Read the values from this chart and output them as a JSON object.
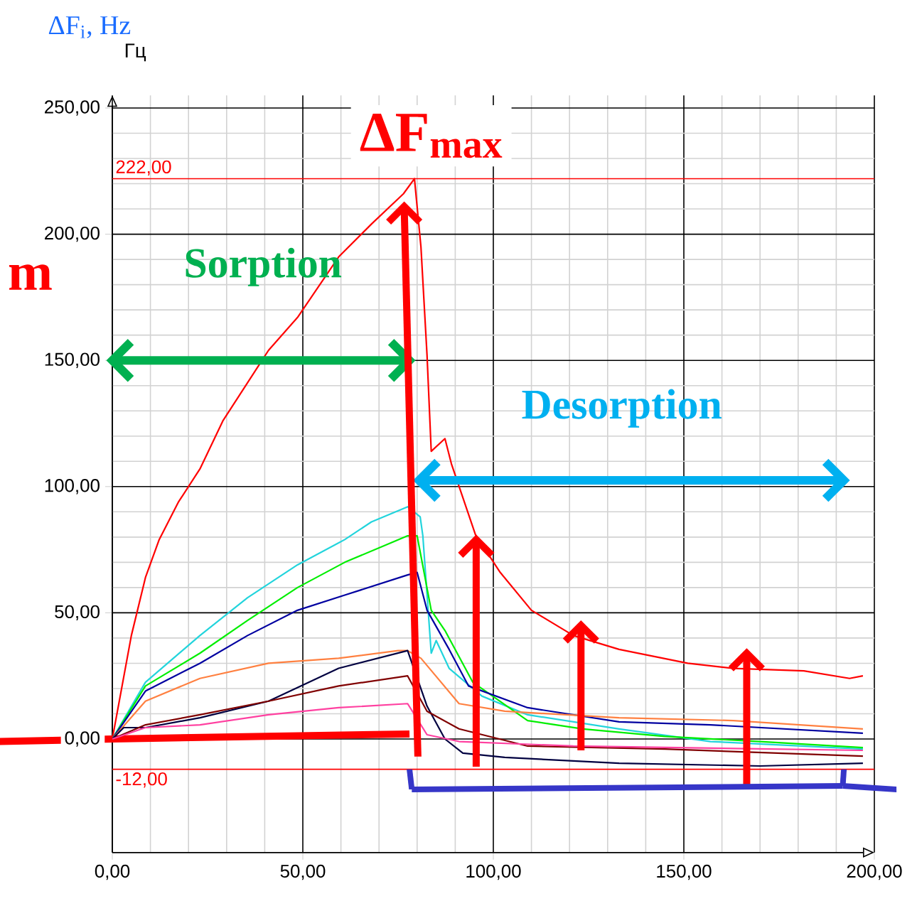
{
  "chart_data": {
    "type": "line",
    "ylabel": "ΔF$_{i}$, Hz",
    "annotations": [
      "Гц",
      "ΔF$_{max}$",
      "Sorption",
      "Desorption",
      "m"
    ],
    "xlim": [
      0,
      200
    ],
    "ylim": [
      -45,
      255
    ],
    "xticks": [
      {
        "value": 0,
        "label": "0,00"
      },
      {
        "value": 50,
        "label": "50,00"
      },
      {
        "value": 100,
        "label": "100,00"
      },
      {
        "value": 150,
        "label": "150,00"
      },
      {
        "value": 200,
        "label": "200,00"
      }
    ],
    "yticks": [
      {
        "value": 0,
        "label": "0,00"
      },
      {
        "value": 50,
        "label": "50,00"
      },
      {
        "value": 100,
        "label": "100,00"
      },
      {
        "value": 150,
        "label": "150,00"
      },
      {
        "value": 200,
        "label": "200,00"
      },
      {
        "value": 250,
        "label": "250,00"
      }
    ],
    "grid": true,
    "ref_lines": [
      {
        "axis": "y",
        "value": 222,
        "label": "222,00",
        "color": "#ff0000"
      },
      {
        "axis": "y",
        "value": -12,
        "label": "-12,00",
        "color": "#ff0000"
      }
    ],
    "series": [
      {
        "type": "line",
        "color": "#ff0000",
        "x": [
          0,
          78
        ],
        "values": [
          0,
          2
        ]
      },
      {
        "color": "#ff0000",
        "x": [
          0,
          5,
          8.7,
          12.3,
          17.4,
          23,
          29,
          41,
          48.6,
          59.4,
          68,
          76.4,
          79.3,
          81,
          82.6,
          83.7,
          87.3,
          89,
          95.3,
          101.8,
          110,
          121,
          133,
          151,
          163,
          181.5,
          193.5,
          197
        ],
        "values": [
          0,
          41,
          64,
          79,
          94,
          107,
          126,
          154,
          167,
          191,
          204,
          216,
          222,
          195,
          152,
          114,
          119,
          109,
          81,
          66,
          51,
          41,
          35.5,
          30,
          28,
          27,
          24,
          25
        ]
      },
      {
        "color": "#22d4dc",
        "x": [
          0,
          8.7,
          23,
          35.5,
          48.6,
          61,
          68,
          77.5,
          80.8,
          81.5,
          83.7,
          85,
          88.4,
          97,
          109,
          133,
          157,
          197
        ],
        "values": [
          0,
          22.5,
          41,
          56,
          69,
          79,
          86,
          92,
          88,
          80.5,
          34,
          39,
          28,
          17,
          9.6,
          4,
          -1,
          -4
        ]
      },
      {
        "color": "#00ee00",
        "x": [
          0,
          8.7,
          23,
          35.5,
          48.6,
          61,
          77.5,
          80,
          83.7,
          87.3,
          94.6,
          109,
          123.5,
          145,
          170,
          197
        ],
        "values": [
          0,
          21,
          34,
          47,
          60,
          70,
          80.5,
          80.5,
          51,
          43,
          22.5,
          7.3,
          4,
          1,
          -1,
          -3.4
        ]
      },
      {
        "color": "#0000a0",
        "x": [
          0,
          8.7,
          23,
          35.5,
          48.6,
          61,
          77.5,
          80,
          82.6,
          88.4,
          93.5,
          109,
          133,
          157,
          197
        ],
        "values": [
          0,
          19,
          30,
          41,
          51,
          57,
          65,
          66,
          51,
          35.5,
          21,
          12.4,
          6.8,
          5.6,
          2.3
        ]
      },
      {
        "color": "#ff8040",
        "x": [
          0,
          8.7,
          23,
          41,
          59.4,
          75,
          77.5,
          81,
          91,
          103,
          133,
          163,
          197
        ],
        "values": [
          0,
          15,
          24,
          30,
          32,
          35,
          35,
          32,
          14,
          11,
          8.4,
          7.3,
          4
        ]
      },
      {
        "color": "#000040",
        "x": [
          0,
          3,
          8.7,
          23,
          41,
          59.4,
          77.5,
          80,
          82.6,
          87.3,
          92,
          103,
          133,
          170,
          197
        ],
        "values": [
          0,
          4.5,
          4.5,
          8.4,
          15,
          28,
          35,
          null,
          13,
          0,
          -5.6,
          -7.3,
          -9.6,
          -10.7,
          -9.6
        ]
      },
      {
        "color": "#800000",
        "x": [
          0,
          8.7,
          23,
          41,
          59.4,
          77.5,
          80,
          82.6,
          91,
          109,
          145,
          197
        ],
        "values": [
          0,
          5.6,
          9.6,
          15,
          21,
          25,
          null,
          11,
          4,
          -2.8,
          -4,
          -6.8
        ]
      },
      {
        "color": "#ff40a0",
        "x": [
          0,
          8.7,
          23,
          41,
          59.4,
          77.5,
          80,
          82.6,
          91,
          121,
          197
        ],
        "values": [
          0,
          4.5,
          5.6,
          9.6,
          12.4,
          14,
          null,
          1.7,
          -1,
          -2.8,
          -4.5
        ]
      }
    ]
  }
}
